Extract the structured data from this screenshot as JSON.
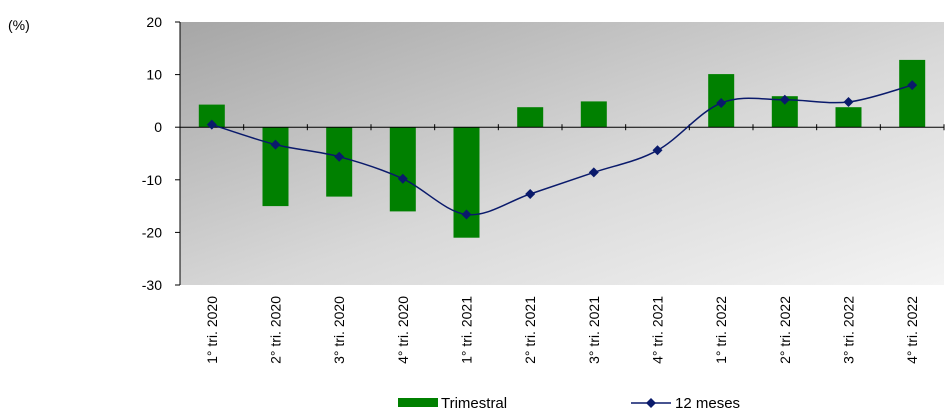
{
  "chart_data": {
    "type": "bar",
    "unit_label": "(%)",
    "categories": [
      "1° tri. 2020",
      "2° tri. 2020",
      "3° tri. 2020",
      "4° tri. 2020",
      "1° tri. 2021",
      "2° tri. 2021",
      "3° tri. 2021",
      "4° tri. 2021",
      "1° tri. 2022",
      "2° tri. 2022",
      "3° tri. 2022",
      "4° tri. 2022"
    ],
    "series": [
      {
        "name": "Trimestral",
        "type": "bar",
        "color": "#008000",
        "values": [
          4.3,
          -15.0,
          -13.2,
          -16.0,
          -21.0,
          3.8,
          4.9,
          0,
          10.1,
          5.9,
          3.8,
          12.8
        ]
      },
      {
        "name": "12 meses",
        "type": "line",
        "color": "#0a1a6b",
        "marker": "diamond",
        "values": [
          0.5,
          -3.3,
          -5.6,
          -9.8,
          -16.6,
          -12.7,
          -8.6,
          -4.4,
          4.6,
          5.2,
          4.8,
          8.0
        ]
      }
    ],
    "yticks": [
      20,
      10,
      0,
      -10,
      -20,
      -30
    ],
    "ylim": [
      -30,
      20
    ],
    "plot_background": "gradient-gray",
    "grid": false,
    "legend_position": "bottom"
  }
}
